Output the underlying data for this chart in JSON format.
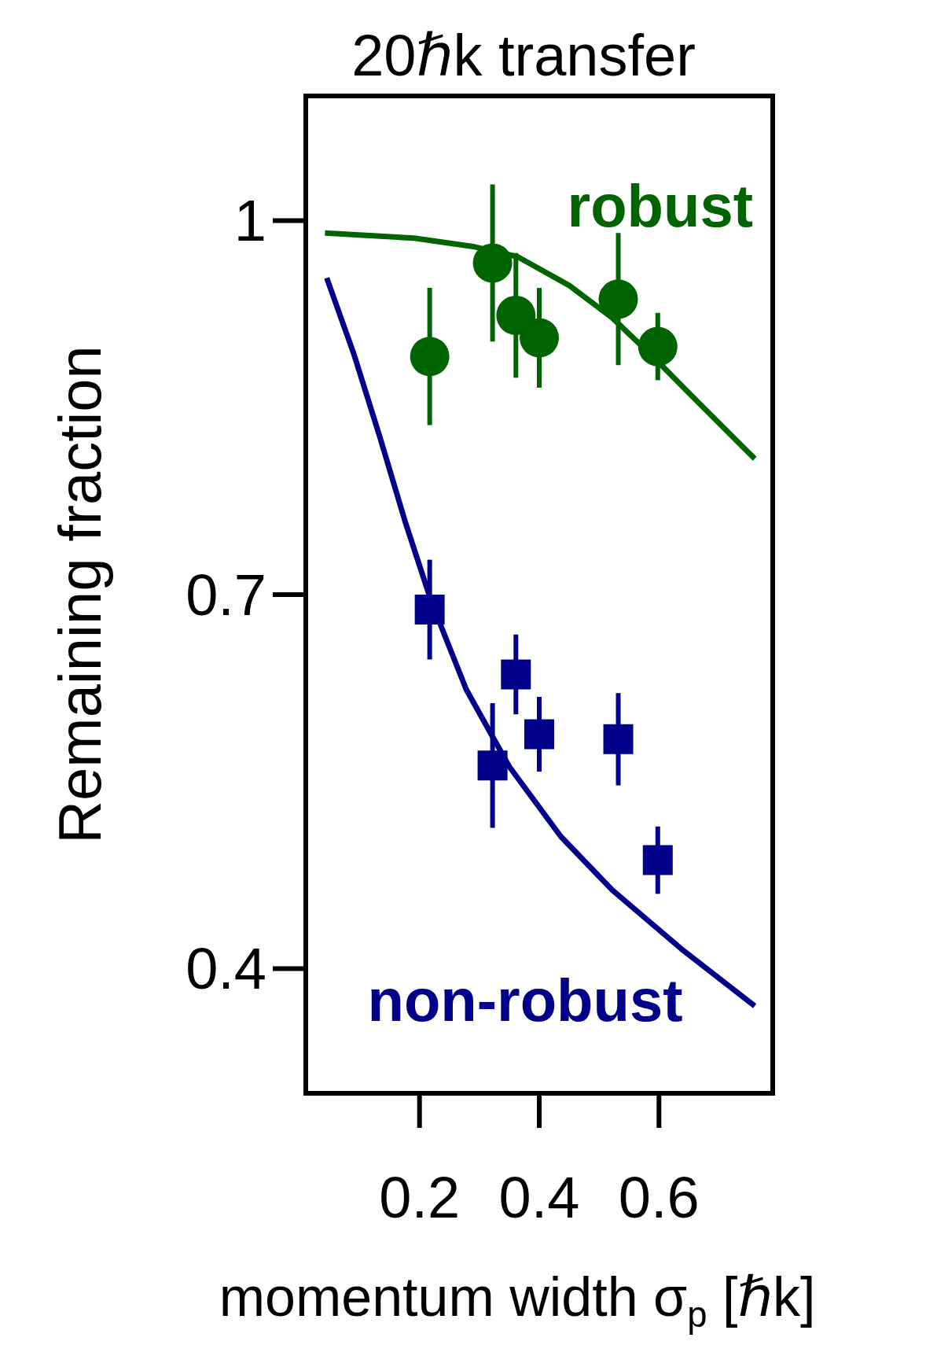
{
  "chart_data": {
    "type": "scatter",
    "title": "20ℏk transfer",
    "xlabel": "momentum width σ$_{p}$ [ℏk]",
    "ylabel": "Remaining fraction",
    "xlim": [
      0.01,
      0.79
    ],
    "ylim": [
      0.3,
      1.1
    ],
    "xticks": [
      0.2,
      0.4,
      0.6
    ],
    "yticks": [
      0.4,
      0.7,
      {
        "value": 1,
        "label": "1"
      }
    ],
    "grid": false,
    "legend": "bottom",
    "series": [
      {
        "name": "robust",
        "marker": "circle",
        "color": "#006400",
        "x": [
          0.217,
          0.322,
          0.361,
          0.4,
          0.532,
          0.598
        ],
        "values": [
          0.891,
          0.966,
          0.924,
          0.906,
          0.937,
          0.899
        ],
        "errors": [
          0.055,
          0.063,
          0.05,
          0.04,
          0.053,
          0.027
        ]
      },
      {
        "type": "line",
        "color": "#006400",
        "x": [
          0.042,
          0.191,
          0.292,
          0.364,
          0.45,
          0.522,
          0.594,
          0.666,
          0.76
        ],
        "values": [
          0.99,
          0.986,
          0.979,
          0.971,
          0.948,
          0.922,
          0.889,
          0.854,
          0.809
        ]
      },
      {
        "name": "non-robust",
        "marker": "square",
        "color": "#00008b",
        "x": [
          0.217,
          0.322,
          0.361,
          0.4,
          0.532,
          0.598
        ],
        "values": [
          0.688,
          0.563,
          0.636,
          0.588,
          0.584,
          0.487
        ],
        "errors": [
          0.04,
          0.05,
          0.032,
          0.03,
          0.037,
          0.027
        ]
      },
      {
        "type": "line",
        "color": "#00008b",
        "x": [
          0.045,
          0.091,
          0.134,
          0.177,
          0.22,
          0.278,
          0.35,
          0.436,
          0.522,
          0.637,
          0.76
        ],
        "values": [
          0.954,
          0.892,
          0.826,
          0.757,
          0.694,
          0.624,
          0.562,
          0.506,
          0.463,
          0.416,
          0.37
        ]
      }
    ]
  }
}
